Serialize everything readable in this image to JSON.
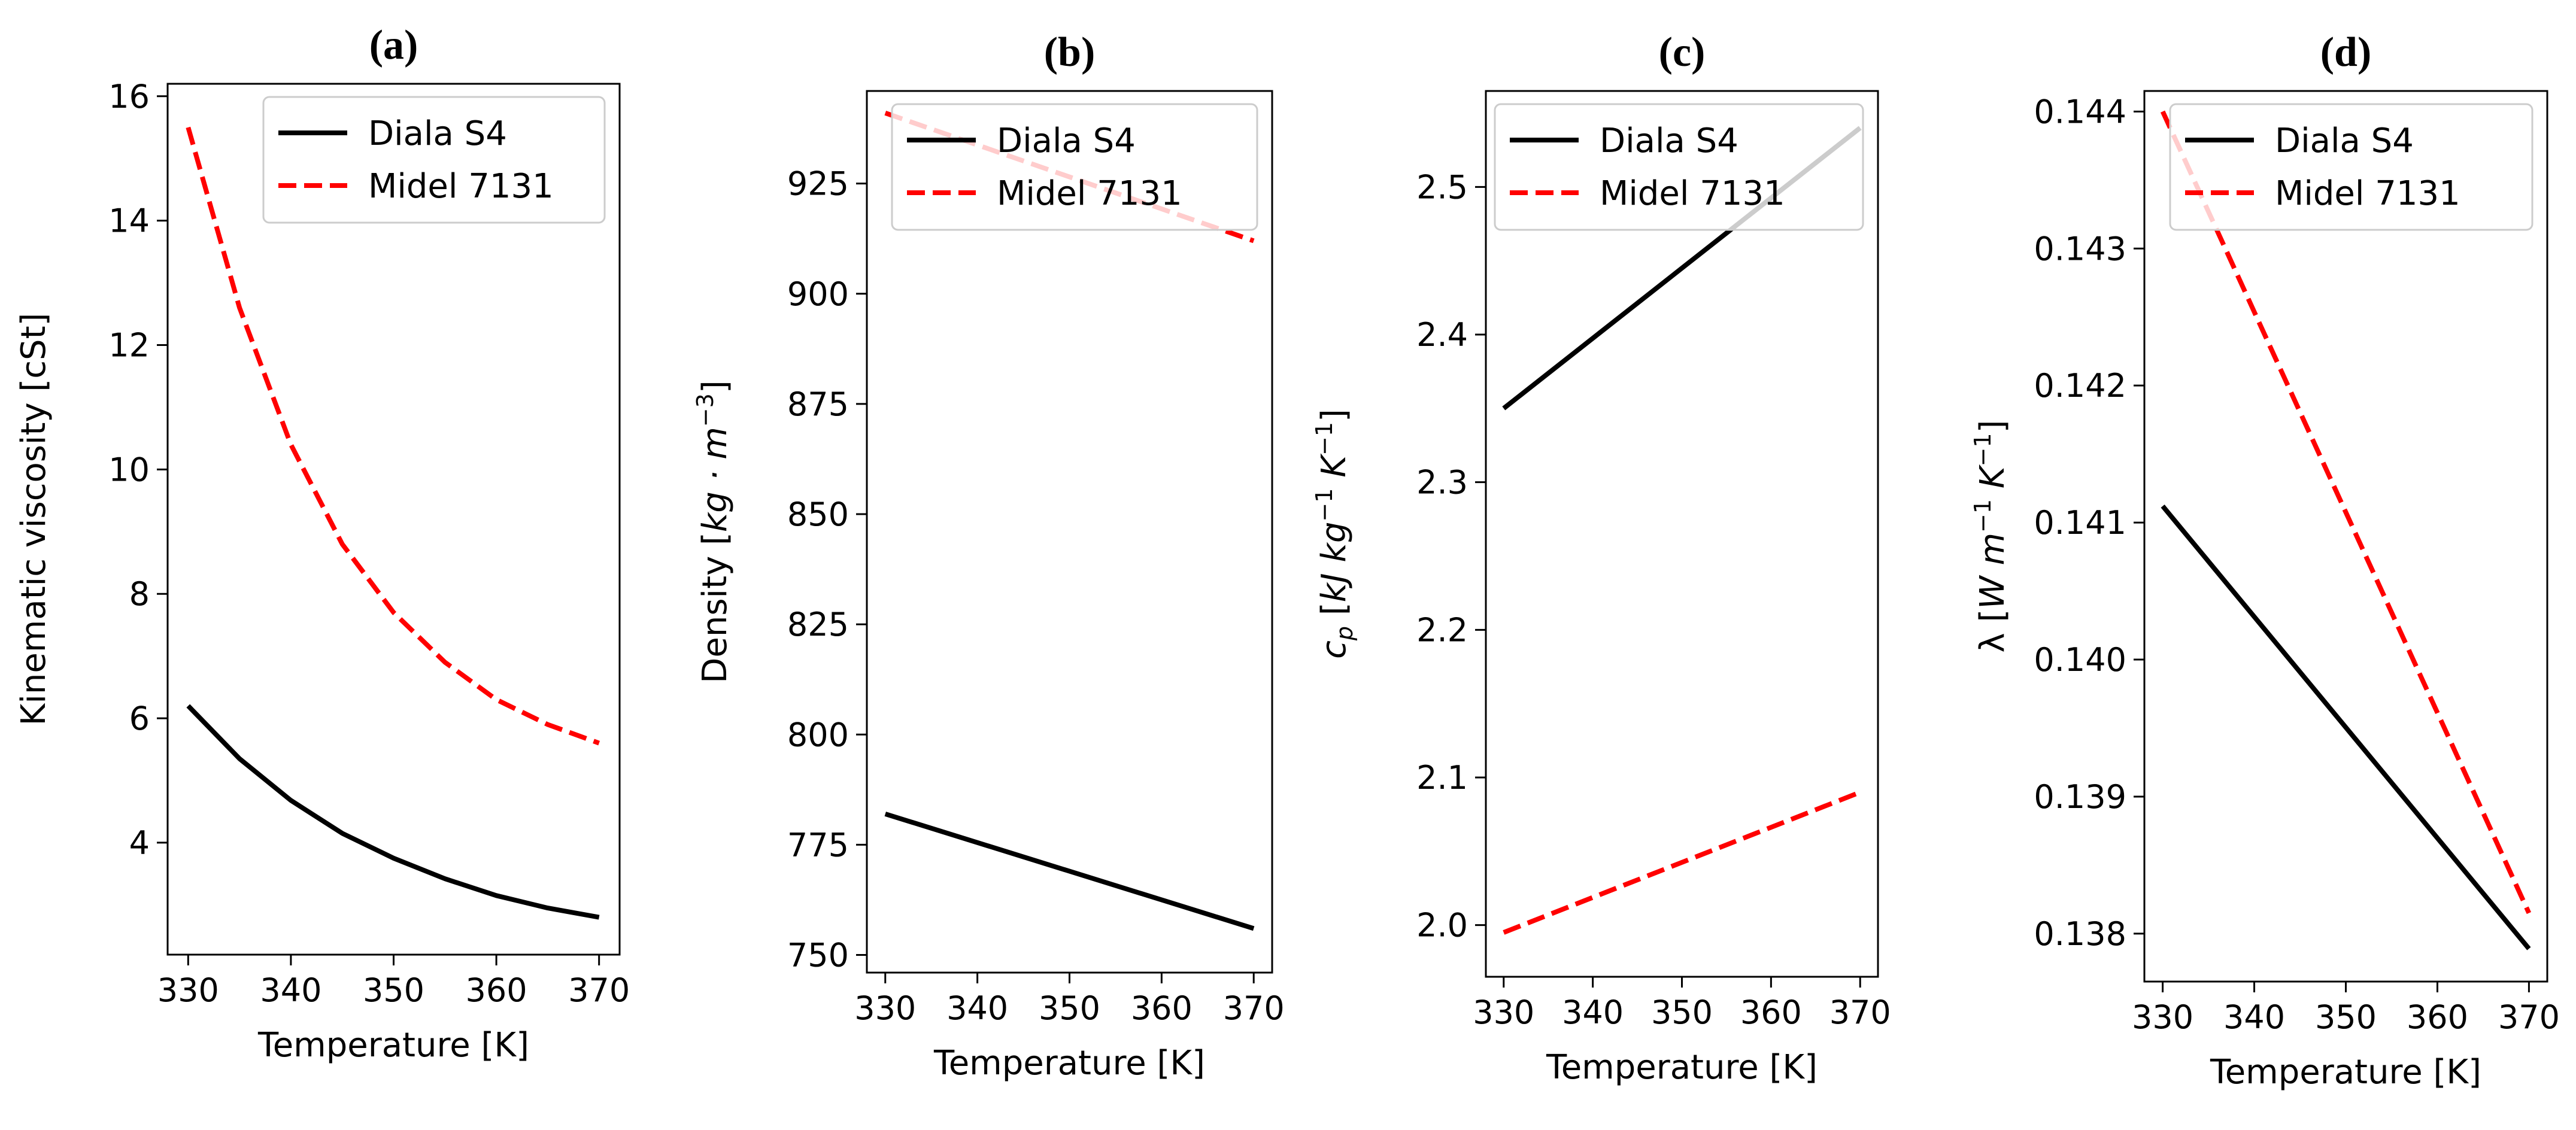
{
  "chart_data": [
    {
      "type": "line",
      "title": "(a)",
      "xlabel": "Temperature [K]",
      "ylabel": "Kinematic viscosity [cSt]",
      "xlim": [
        328,
        372
      ],
      "ylim": [
        2.2,
        16.2
      ],
      "xticks": [
        330,
        340,
        350,
        360,
        370
      ],
      "yticks": [
        4,
        6,
        8,
        10,
        12,
        14,
        16
      ],
      "ytick_labels": [
        "4",
        "6",
        "8",
        "10",
        "12",
        "14",
        "16"
      ],
      "legend": "top-right",
      "series": [
        {
          "name": "Diala S4",
          "color": "#000000",
          "style": "solid",
          "x": [
            330,
            335,
            340,
            345,
            350,
            355,
            360,
            365,
            370
          ],
          "y": [
            6.2,
            5.35,
            4.68,
            4.15,
            3.75,
            3.42,
            3.15,
            2.95,
            2.8
          ]
        },
        {
          "name": "Midel 7131",
          "color": "#ff0000",
          "style": "dashed",
          "x": [
            330,
            335,
            340,
            345,
            350,
            355,
            360,
            365,
            370
          ],
          "y": [
            15.5,
            12.6,
            10.4,
            8.8,
            7.7,
            6.9,
            6.3,
            5.9,
            5.6
          ]
        }
      ]
    },
    {
      "type": "line",
      "title": "(b)",
      "xlabel": "Temperature [K]",
      "ylabel": "Density [kg·m⁻³]",
      "xlim": [
        328,
        372
      ],
      "ylim": [
        746,
        946
      ],
      "xticks": [
        330,
        340,
        350,
        360,
        370
      ],
      "yticks": [
        750,
        775,
        800,
        825,
        850,
        875,
        900,
        925
      ],
      "ytick_labels": [
        "750",
        "775",
        "800",
        "825",
        "850",
        "875",
        "900",
        "925"
      ],
      "legend": "top-right",
      "series": [
        {
          "name": "Diala S4",
          "color": "#000000",
          "style": "solid",
          "x": [
            330,
            370
          ],
          "y": [
            782,
            756
          ]
        },
        {
          "name": "Midel 7131",
          "color": "#ff0000",
          "style": "dashed",
          "x": [
            330,
            370
          ],
          "y": [
            941,
            912
          ]
        }
      ]
    },
    {
      "type": "line",
      "title": "(c)",
      "xlabel": "Temperature [K]",
      "ylabel": "cp [kJ kg⁻¹ K⁻¹]",
      "xlim": [
        328,
        372
      ],
      "ylim": [
        1.965,
        2.565
      ],
      "xticks": [
        330,
        340,
        350,
        360,
        370
      ],
      "yticks": [
        2.0,
        2.1,
        2.2,
        2.3,
        2.4,
        2.5
      ],
      "ytick_labels": [
        "2.0",
        "2.1",
        "2.2",
        "2.3",
        "2.4",
        "2.5"
      ],
      "legend": "top-right",
      "series": [
        {
          "name": "Diala S4",
          "color": "#000000",
          "style": "solid",
          "x": [
            330,
            370
          ],
          "y": [
            2.35,
            2.54
          ]
        },
        {
          "name": "Midel 7131",
          "color": "#ff0000",
          "style": "dashed",
          "x": [
            330,
            370
          ],
          "y": [
            1.995,
            2.09
          ]
        }
      ]
    },
    {
      "type": "line",
      "title": "(d)",
      "xlabel": "Temperature [K]",
      "ylabel": "λ [W m⁻¹ K⁻¹]",
      "xlim": [
        328,
        372
      ],
      "ylim": [
        0.13765,
        0.14415
      ],
      "xticks": [
        330,
        340,
        350,
        360,
        370
      ],
      "yticks": [
        0.138,
        0.139,
        0.14,
        0.141,
        0.142,
        0.143,
        0.144
      ],
      "ytick_labels": [
        "0.138",
        "0.139",
        "0.140",
        "0.141",
        "0.142",
        "0.143",
        "0.144"
      ],
      "legend": "top-right",
      "series": [
        {
          "name": "Diala S4",
          "color": "#000000",
          "style": "solid",
          "x": [
            330,
            370
          ],
          "y": [
            0.14112,
            0.13789
          ]
        },
        {
          "name": "Midel 7131",
          "color": "#ff0000",
          "style": "dashed",
          "x": [
            330,
            370
          ],
          "y": [
            0.144,
            0.13815
          ]
        }
      ]
    }
  ]
}
